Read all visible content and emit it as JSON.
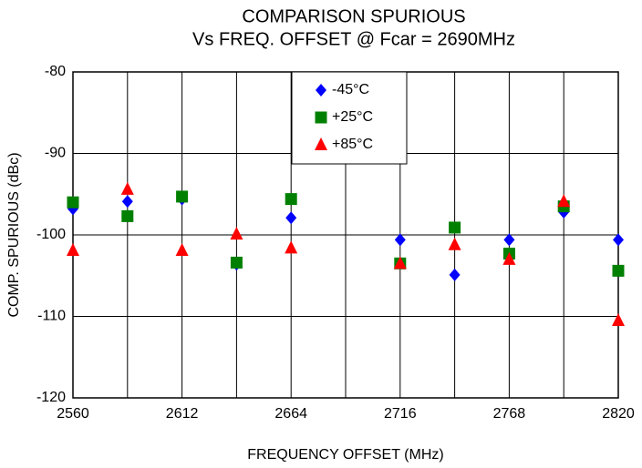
{
  "chart_data": {
    "type": "scatter",
    "title": [
      "COMPARISON SPURIOUS",
      "Vs FREQ. OFFSET @ Fcar = 2690MHz"
    ],
    "x_label": "FREQUENCY OFFSET (MHz)",
    "y_label": "COMP. SPURIOUS (dBc)",
    "x": [
      2560,
      2586,
      2612,
      2638,
      2664,
      2716,
      2742,
      2768,
      2794,
      2820
    ],
    "series": [
      {
        "name": "-45°C",
        "color": "#0000ff",
        "marker": "diamond",
        "values": [
          -96.8,
          -95.9,
          -95.6,
          -103.6,
          -97.9,
          -100.6,
          -104.9,
          -100.6,
          -97.2,
          -100.6
        ]
      },
      {
        "name": "+25°C",
        "color": "#008000",
        "marker": "square",
        "values": [
          -96.0,
          -97.7,
          -95.3,
          -103.4,
          -95.6,
          -103.5,
          -99.1,
          -102.3,
          -96.5,
          -104.4
        ]
      },
      {
        "name": "+85°C",
        "color": "#ff0000",
        "marker": "triangle",
        "values": [
          -101.9,
          -94.4,
          -101.9,
          -99.9,
          -101.6,
          -103.5,
          -101.2,
          -103.0,
          -95.9,
          -110.5
        ]
      }
    ],
    "xlim": [
      2560,
      2820
    ],
    "xticks": [
      2560,
      2612,
      2664,
      2716,
      2768,
      2820
    ],
    "xgrid": [
      2586,
      2638,
      2690,
      2742,
      2794
    ],
    "ylim": [
      -120,
      -80
    ],
    "yticks": [
      -120,
      -110,
      -100,
      -90,
      -80
    ],
    "grid": true,
    "legend": "top"
  }
}
